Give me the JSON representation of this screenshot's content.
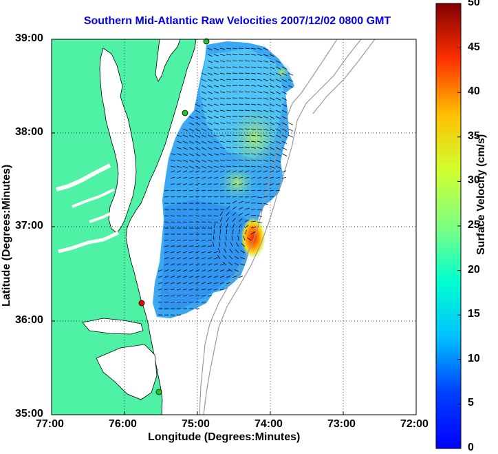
{
  "title": "Southern Mid-Atlantic Raw Velocities 2007/12/02 0800 GMT",
  "x_axis": {
    "label": "Longitude (Degrees:Minutes)",
    "ticks": [
      "77:00",
      "76:00",
      "75:00",
      "74:00",
      "73:00",
      "72:00"
    ]
  },
  "y_axis": {
    "label": "Latitude (Degrees:Minutes)",
    "ticks": [
      "39:00",
      "38:00",
      "37:00",
      "36:00",
      "35:00"
    ]
  },
  "colorbar": {
    "label": "Surface Velocity (cm/s)",
    "ticks": [
      "50",
      "45",
      "40",
      "35",
      "30",
      "25",
      "20",
      "15",
      "10",
      "5",
      "0"
    ],
    "min": 0,
    "max": 50,
    "colormap": "jet"
  },
  "colors": {
    "land": "#4ff2a4",
    "ocean": "#ffffff",
    "title": "#0000ee",
    "site_active": "#22cc22",
    "site_alert": "#ee0000"
  },
  "map": {
    "lon_range": [
      -77,
      -72
    ],
    "lat_range": [
      35,
      39
    ],
    "grid": "dotted"
  }
}
